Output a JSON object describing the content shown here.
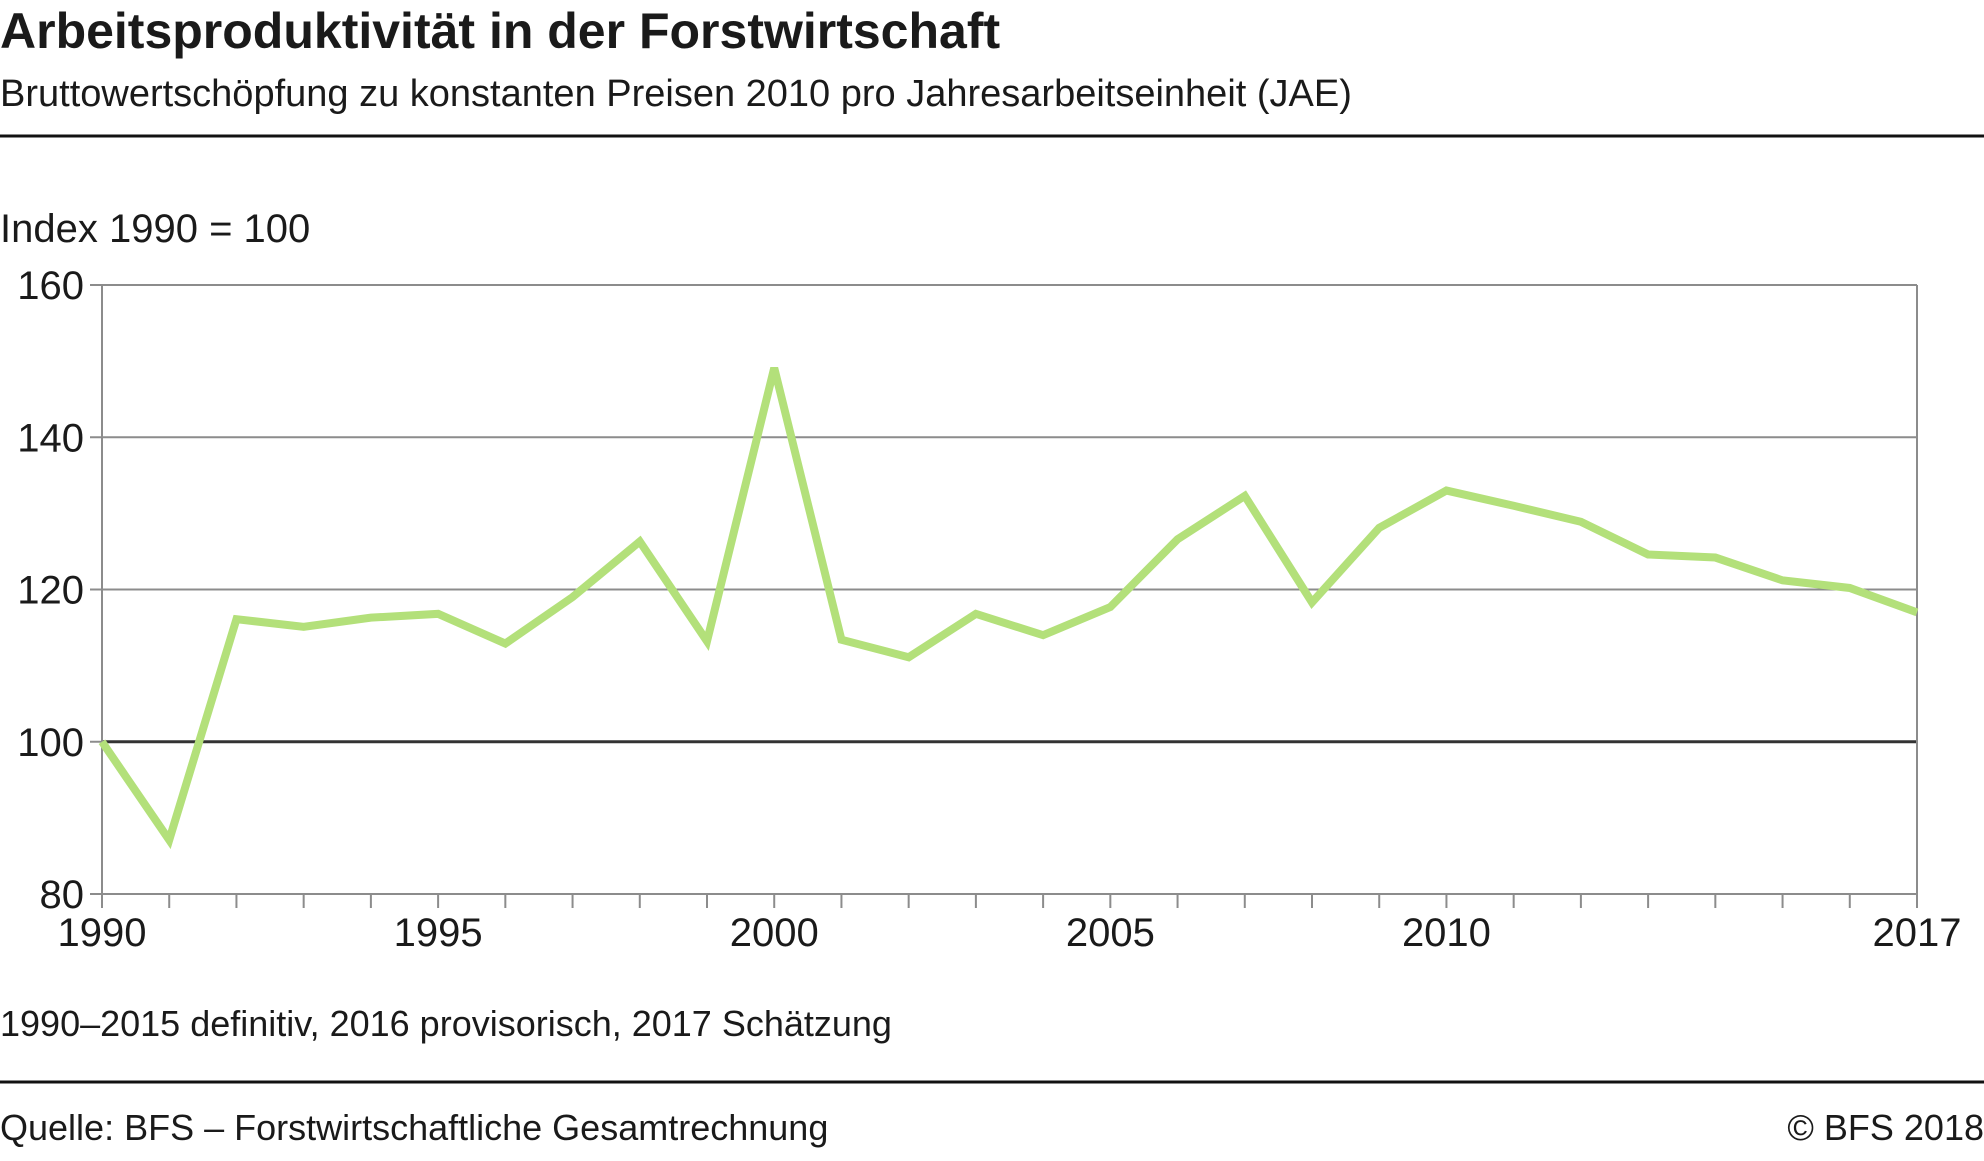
{
  "title": "Arbeitsproduktivität in der Forstwirtschaft",
  "subtitle": "Bruttowertschöpfung zu konstanten Preisen 2010 pro Jahresarbeitseinheit (JAE)",
  "footnote": "1990–2015 definitiv, 2016 provisorisch, 2017 Schätzung",
  "source": "Quelle: BFS – Forstwirtschaftliche Gesamtrechnung",
  "copyright": "© BFS  2018",
  "colors": {
    "line": "#b3e07a",
    "grid": "#8c8c8c",
    "baseline": "#333333"
  },
  "chart_data": {
    "type": "line",
    "title": "Arbeitsproduktivität in der Forstwirtschaft",
    "subtitle": "Bruttowertschöpfung zu konstanten Preisen 2010 pro Jahresarbeitseinheit (JAE)",
    "ylabel": "Index 1990 = 100",
    "xlabel": "",
    "xlim": [
      1990,
      2017
    ],
    "ylim": [
      80,
      160
    ],
    "yticks": [
      80,
      100,
      120,
      140,
      160
    ],
    "xtick_labels": [
      "1990",
      "1995",
      "2000",
      "2005",
      "2010",
      "2017"
    ],
    "grid": true,
    "x": [
      1990,
      1991,
      1992,
      1993,
      1994,
      1995,
      1996,
      1997,
      1998,
      1999,
      2000,
      2001,
      2002,
      2003,
      2004,
      2005,
      2006,
      2007,
      2008,
      2009,
      2010,
      2011,
      2012,
      2013,
      2014,
      2015,
      2016,
      2017
    ],
    "values": [
      100,
      87.1,
      116.1,
      115.1,
      116.3,
      116.8,
      112.9,
      119,
      126.3,
      113.2,
      149.1,
      113.4,
      111.1,
      116.8,
      114,
      117.7,
      126.6,
      132.3,
      118.3,
      128.1,
      133,
      131,
      128.9,
      124.6,
      124.2,
      121.2,
      120.2,
      117
    ]
  }
}
